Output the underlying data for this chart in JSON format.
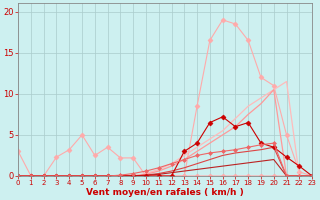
{
  "bg_color": "#cdf0f0",
  "grid_color": "#aacccc",
  "xlabel": "Vent moyen/en rafales ( km/h )",
  "xlabel_color": "#cc0000",
  "tick_color": "#cc0000",
  "x_ticks": [
    0,
    1,
    2,
    3,
    4,
    5,
    6,
    7,
    8,
    9,
    10,
    11,
    12,
    13,
    14,
    15,
    16,
    17,
    18,
    19,
    20,
    21,
    22,
    23
  ],
  "y_ticks": [
    0,
    5,
    10,
    15,
    20
  ],
  "xlim": [
    0,
    23
  ],
  "ylim": [
    0,
    21
  ],
  "series": [
    {
      "x": [
        0,
        1,
        2,
        3,
        4,
        5,
        6,
        7,
        8,
        9,
        10,
        11,
        12,
        13,
        14,
        15,
        16,
        17,
        18,
        19,
        20,
        21,
        22,
        23
      ],
      "y": [
        3.0,
        0.0,
        0.0,
        2.3,
        3.2,
        5.0,
        2.5,
        3.5,
        2.2,
        2.2,
        0.0,
        0.0,
        0.0,
        0.0,
        0.0,
        0.0,
        0.0,
        0.0,
        0.0,
        0.0,
        0.0,
        0.0,
        0.0,
        0.0
      ],
      "color": "#ffaaaa",
      "marker": "D",
      "markersize": 2.5,
      "linewidth": 0.8
    },
    {
      "x": [
        0,
        1,
        2,
        3,
        4,
        5,
        6,
        7,
        8,
        9,
        10,
        11,
        12,
        13,
        14,
        15,
        16,
        17,
        18,
        19,
        20,
        21,
        22,
        23
      ],
      "y": [
        0.0,
        0.0,
        0.0,
        0.0,
        0.0,
        0.0,
        0.0,
        0.0,
        0.0,
        0.0,
        0.0,
        0.0,
        0.0,
        0.0,
        8.5,
        16.5,
        19.0,
        18.5,
        16.5,
        12.0,
        11.0,
        5.0,
        0.5,
        0.0
      ],
      "color": "#ffaaaa",
      "marker": "D",
      "markersize": 2.5,
      "linewidth": 0.8
    },
    {
      "x": [
        0,
        1,
        2,
        3,
        4,
        5,
        6,
        7,
        8,
        9,
        10,
        11,
        12,
        13,
        14,
        15,
        16,
        17,
        18,
        19,
        20,
        21,
        22,
        23
      ],
      "y": [
        0.0,
        0.0,
        0.0,
        0.0,
        0.0,
        0.0,
        0.0,
        0.0,
        0.0,
        0.0,
        0.3,
        0.8,
        1.5,
        2.5,
        3.5,
        4.5,
        5.5,
        7.0,
        8.5,
        9.5,
        10.5,
        11.5,
        0.0,
        0.0
      ],
      "color": "#ffbbbb",
      "marker": null,
      "markersize": 0,
      "linewidth": 0.9
    },
    {
      "x": [
        0,
        1,
        2,
        3,
        4,
        5,
        6,
        7,
        8,
        9,
        10,
        11,
        12,
        13,
        14,
        15,
        16,
        17,
        18,
        19,
        20,
        21,
        22,
        23
      ],
      "y": [
        0.0,
        0.0,
        0.0,
        0.0,
        0.0,
        0.0,
        0.0,
        0.0,
        0.0,
        0.0,
        0.2,
        0.6,
        1.2,
        2.0,
        3.0,
        4.0,
        5.0,
        6.0,
        7.5,
        8.8,
        10.5,
        0.0,
        0.0,
        0.0
      ],
      "color": "#ff9999",
      "marker": null,
      "markersize": 0,
      "linewidth": 0.9
    },
    {
      "x": [
        0,
        1,
        2,
        3,
        4,
        5,
        6,
        7,
        8,
        9,
        10,
        11,
        12,
        13,
        14,
        15,
        16,
        17,
        18,
        19,
        20,
        21,
        22,
        23
      ],
      "y": [
        0.0,
        0.0,
        0.0,
        0.0,
        0.0,
        0.0,
        0.0,
        0.0,
        0.0,
        0.0,
        0.1,
        0.3,
        0.6,
        1.0,
        1.5,
        2.0,
        2.5,
        2.8,
        3.0,
        3.2,
        3.5,
        0.0,
        0.0,
        0.0
      ],
      "color": "#dd4444",
      "marker": null,
      "markersize": 0,
      "linewidth": 0.8
    },
    {
      "x": [
        0,
        1,
        2,
        3,
        4,
        5,
        6,
        7,
        8,
        9,
        10,
        11,
        12,
        13,
        14,
        15,
        16,
        17,
        18,
        19,
        20,
        21,
        22,
        23
      ],
      "y": [
        0.0,
        0.0,
        0.0,
        0.0,
        0.0,
        0.0,
        0.0,
        0.0,
        0.0,
        0.0,
        0.1,
        0.2,
        0.4,
        0.6,
        0.8,
        1.0,
        1.2,
        1.4,
        1.6,
        1.8,
        2.0,
        0.0,
        0.0,
        0.0
      ],
      "color": "#bb2222",
      "marker": null,
      "markersize": 0,
      "linewidth": 0.8
    },
    {
      "x": [
        0,
        1,
        2,
        3,
        4,
        5,
        6,
        7,
        8,
        9,
        10,
        11,
        12,
        13,
        14,
        15,
        16,
        17,
        18,
        19,
        20,
        21,
        22,
        23
      ],
      "y": [
        0.0,
        0.0,
        0.0,
        0.0,
        0.0,
        0.0,
        0.0,
        0.0,
        0.0,
        0.0,
        0.0,
        0.0,
        0.0,
        3.0,
        4.0,
        6.5,
        7.2,
        6.0,
        6.5,
        4.0,
        3.5,
        2.3,
        1.2,
        0.0
      ],
      "color": "#cc0000",
      "marker": "D",
      "markersize": 2.5,
      "linewidth": 0.8
    },
    {
      "x": [
        0,
        1,
        2,
        3,
        4,
        5,
        6,
        7,
        8,
        9,
        10,
        11,
        12,
        13,
        14,
        15,
        16,
        17,
        18,
        19,
        20,
        21,
        22,
        23
      ],
      "y": [
        0.0,
        0.0,
        0.0,
        0.0,
        0.0,
        0.0,
        0.0,
        0.0,
        0.1,
        0.3,
        0.6,
        1.0,
        1.5,
        2.0,
        2.5,
        2.8,
        3.0,
        3.2,
        3.5,
        3.8,
        4.0,
        0.0,
        0.0,
        0.0
      ],
      "color": "#ee6666",
      "marker": "D",
      "markersize": 2.0,
      "linewidth": 0.8
    }
  ]
}
